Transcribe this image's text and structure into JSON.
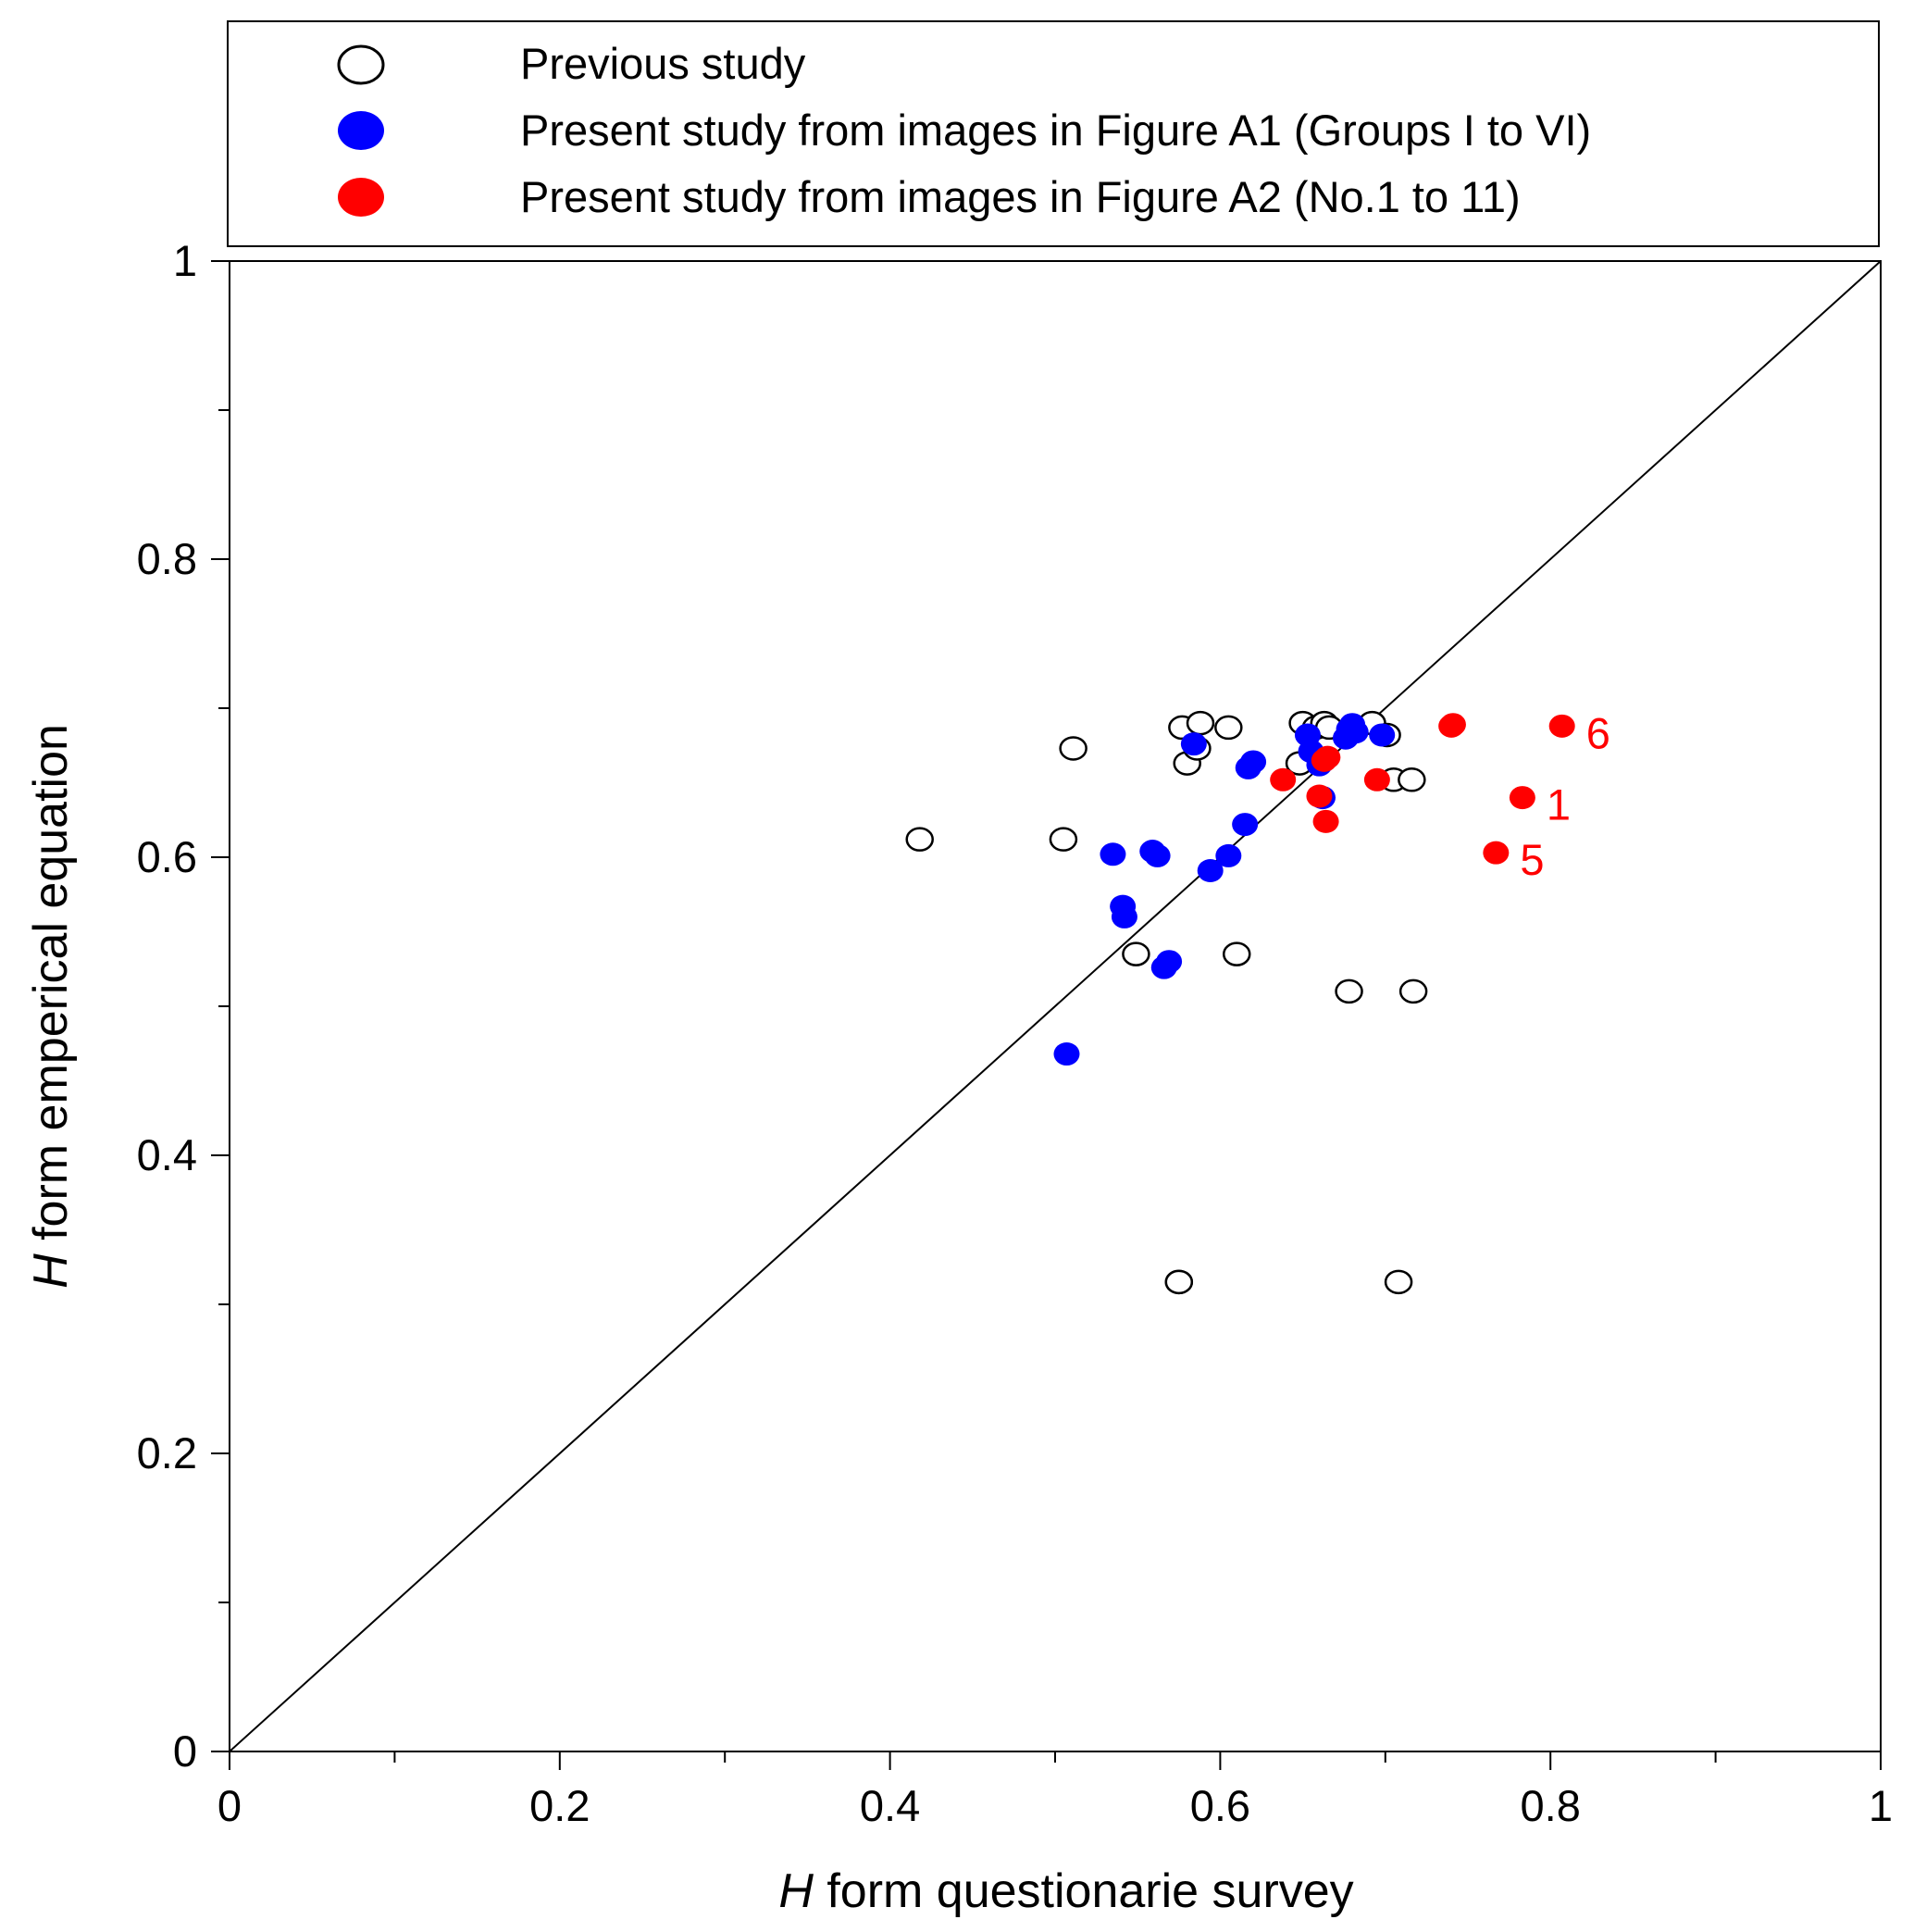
{
  "chart_data": {
    "type": "scatter",
    "title": "",
    "xlabel_var": "H",
    "xlabel_rest": " form questionarie survey",
    "ylabel_var": "H",
    "ylabel_rest": " form emperical equation",
    "xlim": [
      0,
      1
    ],
    "ylim": [
      0,
      1
    ],
    "x_ticks": [
      0,
      0.2,
      0.4,
      0.6,
      0.8,
      1
    ],
    "y_ticks": [
      0,
      0.2,
      0.4,
      0.6,
      0.8,
      1
    ],
    "x_tick_labels": [
      "0",
      "0.2",
      "0.4",
      "0.6",
      "0.8",
      "1"
    ],
    "y_tick_labels": [
      "0",
      "0.2",
      "0.4",
      "0.6",
      "0.8",
      "1"
    ],
    "legend_position": "top",
    "reference_line": "y = x",
    "series": [
      {
        "name": "Previous study",
        "style": "open",
        "color": "#000000",
        "x": [
          0.418,
          0.505,
          0.511,
          0.549,
          0.575,
          0.577,
          0.58,
          0.586,
          0.588,
          0.605,
          0.61,
          0.648,
          0.65,
          0.658,
          0.663,
          0.666,
          0.68,
          0.692,
          0.701,
          0.705,
          0.708,
          0.716,
          0.717,
          0.678,
          0.575
        ],
        "y": [
          0.612,
          0.612,
          0.673,
          0.535,
          0.315,
          0.687,
          0.663,
          0.673,
          0.69,
          0.687,
          0.535,
          0.663,
          0.69,
          0.687,
          0.69,
          0.687,
          0.687,
          0.69,
          0.682,
          0.652,
          0.315,
          0.652,
          0.51,
          0.51,
          0.315
        ]
      },
      {
        "name": "Present study from images in Figure A1 (Groups I to VI)",
        "style": "filled",
        "color": "#0000ff",
        "x": [
          0.507,
          0.535,
          0.541,
          0.542,
          0.559,
          0.562,
          0.566,
          0.569,
          0.584,
          0.594,
          0.605,
          0.615,
          0.617,
          0.62,
          0.653,
          0.655,
          0.66,
          0.662,
          0.676,
          0.678,
          0.68,
          0.682,
          0.698
        ],
        "y": [
          0.468,
          0.602,
          0.567,
          0.56,
          0.604,
          0.601,
          0.526,
          0.53,
          0.676,
          0.591,
          0.601,
          0.622,
          0.66,
          0.664,
          0.682,
          0.671,
          0.662,
          0.64,
          0.68,
          0.686,
          0.689,
          0.684,
          0.682
        ]
      },
      {
        "name": "Present study from images in Figure A2 (No.1 to 11)",
        "style": "filled",
        "color": "#ff0000",
        "x": [
          0.638,
          0.66,
          0.664,
          0.665,
          0.695,
          0.74,
          0.741,
          0.783,
          0.767,
          0.807,
          0.663
        ],
        "y": [
          0.652,
          0.641,
          0.624,
          0.667,
          0.652,
          0.688,
          0.689,
          0.64,
          0.603,
          0.688,
          0.665
        ],
        "labels": [
          "",
          "",
          "",
          "",
          "",
          "",
          "",
          "1",
          "5",
          "6",
          ""
        ]
      }
    ]
  }
}
